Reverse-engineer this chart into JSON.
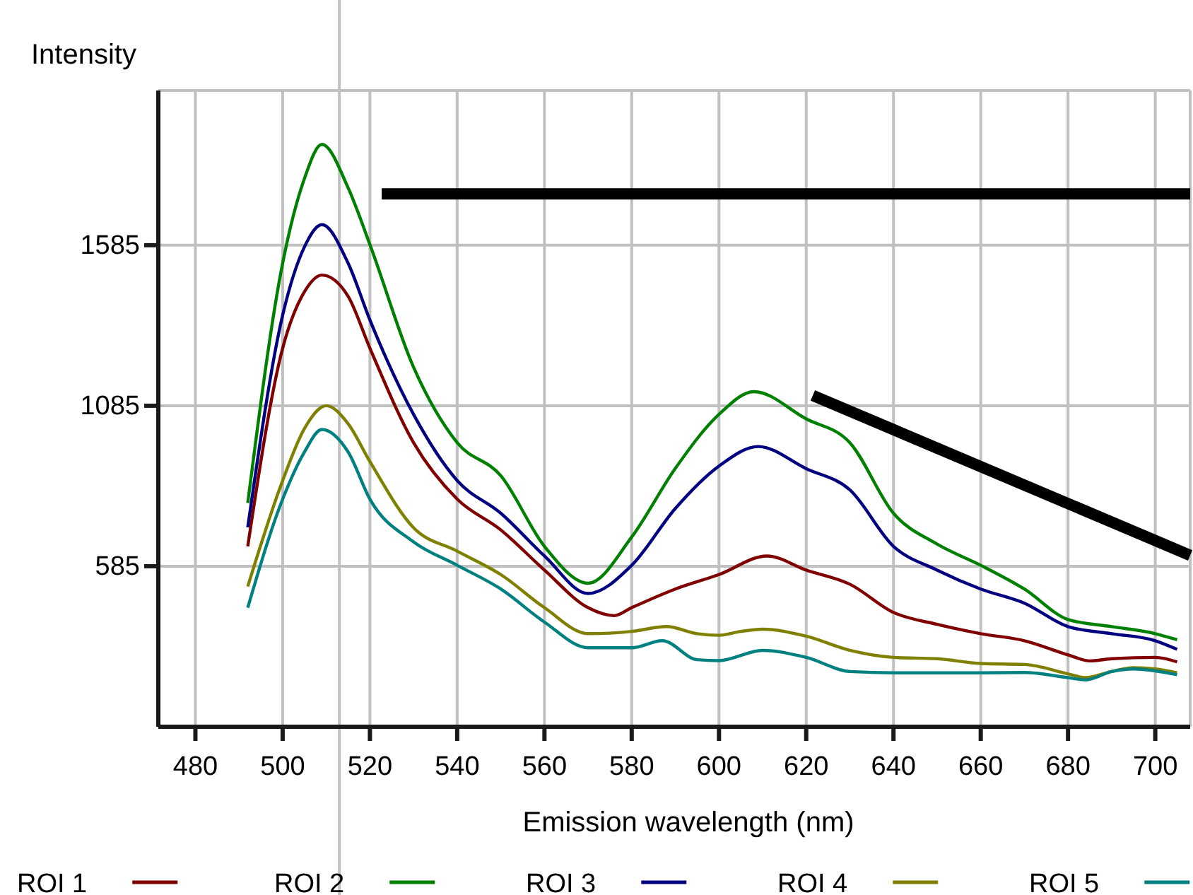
{
  "chart_data": {
    "type": "line",
    "xlabel": "Emission wavelength (nm)",
    "ylabel": "Intensity",
    "xlim": [
      471.5,
      708
    ],
    "xticks": [
      480,
      500,
      520,
      540,
      560,
      580,
      600,
      620,
      640,
      660,
      680,
      700
    ],
    "ylim": [
      85,
      2067
    ],
    "yticks": [
      585,
      1085,
      1585
    ],
    "grid": true,
    "legend": "bottom",
    "line_style": "solid",
    "marker": "none",
    "ref_lines": [
      {
        "axis": "x",
        "value": 513,
        "color": "#c0c0c0"
      }
    ],
    "series": [
      {
        "name": "ROI 1",
        "color": "#800000",
        "x": [
          492,
          500,
          505,
          509,
          515,
          520,
          530,
          540,
          550,
          560,
          570,
          576,
          580,
          590,
          600,
          611,
          620,
          630,
          640,
          650,
          660,
          670,
          680,
          685,
          690,
          700,
          705
        ],
        "values": [
          647,
          1264,
          1440,
          1492,
          1426,
          1264,
          970,
          794,
          698,
          573,
          456,
          431,
          456,
          514,
          559,
          617,
          573,
          529,
          441,
          404,
          375,
          353,
          309,
          290,
          297,
          301,
          287
        ]
      },
      {
        "name": "ROI 2",
        "color": "#008000",
        "x": [
          492,
          500,
          505,
          509,
          515,
          520,
          530,
          540,
          550,
          560,
          570,
          580,
          590,
          600,
          608,
          620,
          630,
          640,
          650,
          660,
          670,
          680,
          690,
          700,
          705
        ],
        "values": [
          782,
          1529,
          1793,
          1899,
          1764,
          1587,
          1205,
          970,
          867,
          647,
          532,
          676,
          890,
          1058,
          1129,
          1044,
          970,
          750,
          654,
          588,
          514,
          419,
          397,
          375,
          356
        ]
      },
      {
        "name": "ROI 3",
        "color": "#000080",
        "x": [
          492,
          500,
          505,
          509,
          515,
          520,
          530,
          540,
          550,
          560,
          570,
          580,
          590,
          600,
          609,
          620,
          630,
          640,
          650,
          660,
          670,
          680,
          690,
          700,
          705
        ],
        "values": [
          706,
          1367,
          1580,
          1649,
          1529,
          1352,
          1058,
          852,
          750,
          617,
          500,
          588,
          765,
          897,
          958,
          889,
          823,
          647,
          573,
          514,
          470,
          397,
          375,
          353,
          326
        ]
      },
      {
        "name": "ROI 4",
        "color": "#808000",
        "x": [
          492,
          500,
          505,
          510,
          515,
          520,
          530,
          540,
          550,
          560,
          570,
          580,
          588,
          595,
          600,
          605,
          610,
          620,
          630,
          640,
          650,
          660,
          670,
          680,
          684,
          690,
          695,
          700,
          705
        ],
        "values": [
          522,
          852,
          1014,
          1085,
          1029,
          911,
          705,
          632,
          559,
          456,
          375,
          382,
          397,
          375,
          370,
          382,
          389,
          367,
          323,
          301,
          297,
          282,
          279,
          250,
          238,
          257,
          269,
          265,
          253
        ]
      },
      {
        "name": "ROI 5",
        "color": "#008080",
        "x": [
          492,
          500,
          505,
          509,
          515,
          520,
          530,
          540,
          550,
          560,
          570,
          580,
          587,
          595,
          600,
          610,
          620,
          630,
          640,
          660,
          670,
          680,
          684,
          690,
          695,
          705
        ],
        "values": [
          456,
          794,
          941,
          1011,
          941,
          794,
          661,
          588,
          514,
          411,
          331,
          331,
          353,
          294,
          291,
          323,
          301,
          257,
          253,
          253,
          254,
          238,
          231,
          257,
          265,
          247
        ]
      },
      {
        "color": "#000000",
        "x": [
          522.7,
          708
        ],
        "values": [
          1745,
          1745
        ]
      },
      {
        "color": "#000000",
        "x": [
          621.5,
          708
        ],
        "values": [
          1117,
          619
        ]
      }
    ]
  }
}
